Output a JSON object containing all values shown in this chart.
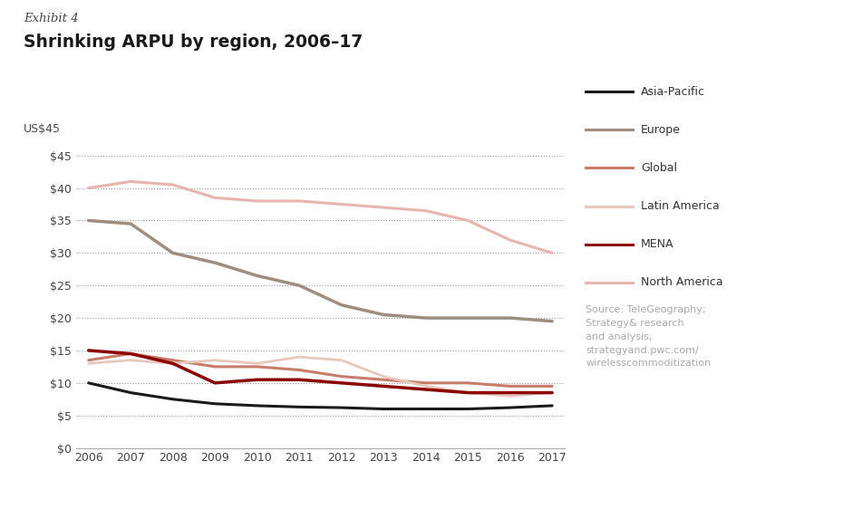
{
  "title_line1": "Exhibit 4",
  "title_line2": "Shrinking ARPU by region, 2006–17",
  "ylabel": "US$45",
  "years": [
    2006,
    2007,
    2008,
    2009,
    2010,
    2011,
    2012,
    2013,
    2014,
    2015,
    2016,
    2017
  ],
  "series": {
    "Asia-Pacific": {
      "color": "#1a1a1a",
      "linewidth": 2.2,
      "data": [
        10.0,
        8.5,
        7.5,
        6.8,
        6.5,
        6.3,
        6.2,
        6.0,
        6.0,
        6.0,
        6.2,
        6.5
      ]
    },
    "Europe": {
      "color": "#9e8e80",
      "linewidth": 2.5,
      "data": [
        35.0,
        34.5,
        30.0,
        28.5,
        26.5,
        25.0,
        22.0,
        20.5,
        20.0,
        20.0,
        20.0,
        19.5
      ]
    },
    "Global": {
      "color": "#c87c6a",
      "linewidth": 2.2,
      "data": [
        13.5,
        14.5,
        13.5,
        12.5,
        12.5,
        12.0,
        11.0,
        10.5,
        10.0,
        10.0,
        9.5,
        9.5
      ]
    },
    "Latin America": {
      "color": "#e8c8bc",
      "linewidth": 2.0,
      "data": [
        13.0,
        13.5,
        13.0,
        13.5,
        13.0,
        14.0,
        13.5,
        11.0,
        9.5,
        8.5,
        8.0,
        8.5
      ]
    },
    "MENA": {
      "color": "#8b0000",
      "linewidth": 2.5,
      "data": [
        15.0,
        14.5,
        13.0,
        10.0,
        10.5,
        10.5,
        10.0,
        9.5,
        9.0,
        8.5,
        8.5,
        8.5
      ]
    },
    "North America": {
      "color": "#e8b4b0",
      "linewidth": 2.2,
      "data": [
        40.0,
        41.0,
        40.5,
        38.5,
        38.0,
        38.0,
        37.5,
        37.0,
        36.5,
        35.0,
        32.0,
        30.0
      ]
    }
  },
  "yticks": [
    0,
    5,
    10,
    15,
    20,
    25,
    30,
    35,
    40,
    45
  ],
  "ylim": [
    0,
    47
  ],
  "xlim": [
    2006,
    2017
  ],
  "background_color": "#ffffff",
  "source_text": "Source: TeleGeography;\nStrategy& research\nand analysis,\nstrategyand.pwc.com/\nwirelesscommoditization",
  "legend_order": [
    "Asia-Pacific",
    "Europe",
    "Global",
    "Latin America",
    "MENA",
    "North America"
  ]
}
